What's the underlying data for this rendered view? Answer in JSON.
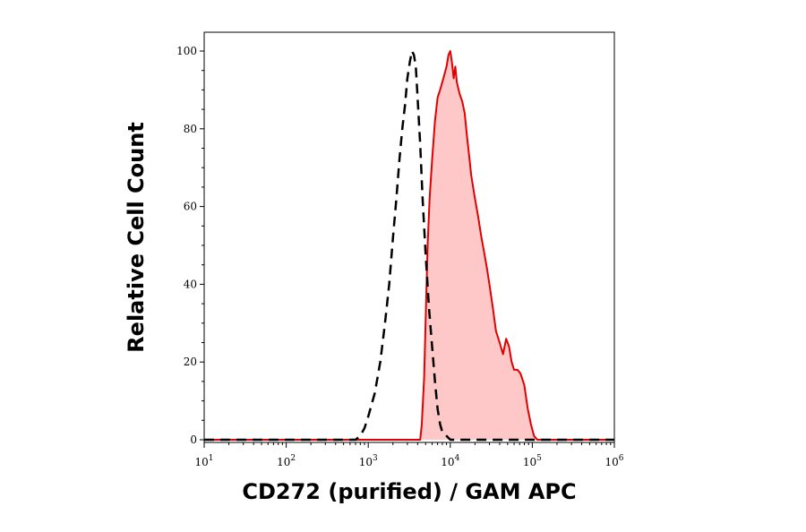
{
  "chart_data": {
    "type": "area",
    "title": "",
    "xlabel": "CD272 (purified) / GAM APC",
    "ylabel": "Relative Cell Count",
    "xscale": "log",
    "xlim": [
      10,
      1000000
    ],
    "ylim": [
      0,
      100
    ],
    "grid": false,
    "x_ticks": [
      {
        "value": 10,
        "base": "10",
        "exp": "1"
      },
      {
        "value": 100,
        "base": "10",
        "exp": "2"
      },
      {
        "value": 1000,
        "base": "10",
        "exp": "3"
      },
      {
        "value": 10000,
        "base": "10",
        "exp": "4"
      },
      {
        "value": 100000,
        "base": "10",
        "exp": "5"
      },
      {
        "value": 1000000,
        "base": "10",
        "exp": "6"
      }
    ],
    "y_ticks": [
      {
        "value": 0,
        "label": "0"
      },
      {
        "value": 20,
        "label": "20"
      },
      {
        "value": 40,
        "label": "40"
      },
      {
        "value": 60,
        "label": "60"
      },
      {
        "value": 80,
        "label": "80"
      },
      {
        "value": 100,
        "label": "100"
      }
    ],
    "series": [
      {
        "style": "dashed",
        "color": "#000000",
        "fill": "none",
        "x": [
          10,
          700,
          800,
          900,
          1000,
          1200,
          1400,
          1600,
          1800,
          2000,
          2200,
          2400,
          2600,
          2800,
          3000,
          3200,
          3400,
          3600,
          3800,
          4000,
          4300,
          4600,
          5000,
          5500,
          6000,
          6500,
          7000,
          7500,
          8000,
          9000,
          10000,
          1000000
        ],
        "y": [
          0,
          0,
          1,
          3,
          6,
          12,
          20,
          30,
          40,
          52,
          62,
          72,
          80,
          86,
          93,
          97,
          100,
          99,
          96,
          88,
          76,
          62,
          48,
          34,
          24,
          15,
          8,
          4,
          2,
          1,
          0,
          0
        ]
      },
      {
        "style": "solid",
        "color": "#e00000",
        "fill": "#ffc8c8",
        "x": [
          10,
          4300,
          4500,
          4800,
          5000,
          5300,
          5600,
          6000,
          6500,
          7000,
          7500,
          8000,
          8500,
          9000,
          9500,
          10000,
          10500,
          11000,
          11500,
          12000,
          13000,
          14000,
          15000,
          16000,
          17000,
          18000,
          20000,
          22000,
          24000,
          26000,
          28000,
          30000,
          33000,
          36000,
          40000,
          44000,
          48000,
          52000,
          56000,
          60000,
          66000,
          72000,
          80000,
          88000,
          96000,
          105000,
          115000,
          125000,
          140000,
          1000000
        ],
        "y": [
          0,
          0,
          4,
          16,
          30,
          50,
          62,
          72,
          82,
          88,
          90,
          92,
          94,
          96,
          99,
          100,
          97,
          93,
          96,
          92,
          89,
          87,
          84,
          78,
          73,
          68,
          62,
          57,
          52,
          48,
          44,
          40,
          34,
          28,
          25,
          22,
          26,
          24,
          20,
          18,
          18,
          17,
          14,
          8,
          4,
          1,
          0,
          0,
          0,
          0
        ]
      }
    ]
  }
}
